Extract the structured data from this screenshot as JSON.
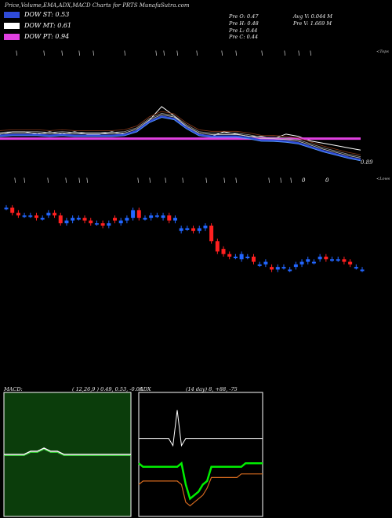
{
  "title": "Price,Volume,EMA,ADX,MACD Charts for PRTS MunafaSutra.com",
  "legend": [
    {
      "label": "DOW ST: 0.53",
      "color": "#2f4bd8"
    },
    {
      "label": "DOW MT: 0.61",
      "color": "#ffffff"
    },
    {
      "label": "DOW PT: 0.94",
      "color": "#e040e0"
    }
  ],
  "stats": {
    "pre_o": "Pre   O: 0.47",
    "pre_h": "Pre   H: 0.48",
    "pre_l": "Pre   L: 0.44",
    "pre_c": "Pre   C: 0.44",
    "avg_v": "Avg V: 0.044   M",
    "pre_v": "Pre   V: 1.669 M"
  },
  "labels": {
    "top_right": "<Tops",
    "bottom_right": "<Lows",
    "last_price": "0.89"
  },
  "macd": {
    "name": "MACD:",
    "params": "( 12,26,9 ) 0.49,  0.53,  -0.06"
  },
  "adx": {
    "name": "ADX",
    "params": "(14  day) 8,  +88,  -75"
  },
  "colors": {
    "bull": "#2266ff",
    "bear": "#ff2020",
    "ema_fast": "#2f4bd8",
    "ema_mid": "#ffffff",
    "ema_slow": "#e040e0",
    "macd_bg": "#0b3d0b"
  },
  "chart_data": [
    {
      "type": "line",
      "title": "",
      "xlabel": "",
      "ylabel": "",
      "x": [
        1,
        2,
        3,
        4,
        5,
        6,
        7,
        8,
        9,
        10,
        11,
        12,
        13,
        14,
        15,
        16,
        17,
        18,
        19,
        20,
        21,
        22,
        23,
        24,
        25,
        26,
        27,
        28,
        29,
        30
      ],
      "series": [
        {
          "values": [
            0.96,
            0.97,
            0.97,
            0.96,
            0.97,
            0.96,
            0.97,
            0.96,
            0.96,
            0.97,
            0.96,
            0.97,
            1.02,
            1.08,
            1.04,
            0.99,
            0.96,
            0.95,
            0.97,
            0.96,
            0.95,
            0.95,
            0.94,
            0.96,
            0.95,
            0.93,
            0.92,
            0.91,
            0.9,
            0.89
          ]
        },
        {
          "values": [
            0.94,
            0.94,
            0.94,
            0.94,
            0.94,
            0.94,
            0.94,
            0.94,
            0.94,
            0.94,
            0.94,
            0.94,
            0.94,
            0.94,
            0.94,
            0.94,
            0.94,
            0.94,
            0.94,
            0.94,
            0.94,
            0.94,
            0.94,
            0.94,
            0.94,
            0.94,
            0.94,
            0.94,
            0.94,
            0.94
          ]
        }
      ]
    },
    {
      "type": "bar",
      "title": "",
      "categories": [
        "1",
        "2",
        "3",
        "4",
        "5",
        "6",
        "7",
        "8",
        "9",
        "10",
        "11",
        "12",
        "13",
        "14",
        "15",
        "16",
        "17",
        "18",
        "19",
        "20",
        "21",
        "22",
        "23",
        "24",
        "25",
        "26",
        "27",
        "28",
        "29",
        "30",
        "31",
        "32",
        "33",
        "34",
        "35",
        "36",
        "37",
        "38",
        "39",
        "40",
        "41",
        "42",
        "43",
        "44",
        "45",
        "46",
        "47",
        "48",
        "49",
        "50",
        "51",
        "52",
        "53",
        "54",
        "55",
        "56",
        "57",
        "58",
        "59",
        "60"
      ],
      "series": [
        {
          "name": "open",
          "values": [
            0.66,
            0.66,
            0.64,
            0.63,
            0.63,
            0.63,
            0.62,
            0.63,
            0.64,
            0.63,
            0.6,
            0.61,
            0.62,
            0.62,
            0.61,
            0.6,
            0.6,
            0.59,
            0.62,
            0.6,
            0.61,
            0.62,
            0.65,
            0.62,
            0.62,
            0.63,
            0.62,
            0.63,
            0.61,
            0.57,
            0.58,
            0.58,
            0.57,
            0.58,
            0.59,
            0.53,
            0.5,
            0.48,
            0.47,
            0.46,
            0.47,
            0.47,
            0.44,
            0.44,
            0.43,
            0.42,
            0.43,
            0.42,
            0.43,
            0.44,
            0.45,
            0.45,
            0.46,
            0.47,
            0.46,
            0.46,
            0.46,
            0.45,
            0.43,
            0.42
          ]
        },
        {
          "name": "close",
          "values": [
            0.66,
            0.64,
            0.63,
            0.63,
            0.63,
            0.62,
            0.62,
            0.64,
            0.63,
            0.6,
            0.61,
            0.62,
            0.62,
            0.61,
            0.6,
            0.6,
            0.59,
            0.6,
            0.61,
            0.61,
            0.62,
            0.65,
            0.62,
            0.62,
            0.63,
            0.63,
            0.63,
            0.61,
            0.62,
            0.58,
            0.58,
            0.57,
            0.58,
            0.59,
            0.53,
            0.49,
            0.48,
            0.47,
            0.47,
            0.48,
            0.47,
            0.45,
            0.44,
            0.45,
            0.42,
            0.43,
            0.43,
            0.42,
            0.44,
            0.45,
            0.46,
            0.45,
            0.47,
            0.46,
            0.46,
            0.46,
            0.45,
            0.44,
            0.43,
            0.42
          ]
        }
      ]
    },
    {
      "type": "line",
      "title": "MACD",
      "series": [
        {
          "values": [
            0.53,
            0.53,
            0.53,
            0.53,
            0.54,
            0.54,
            0.55,
            0.54,
            0.54,
            0.53,
            0.53,
            0.53,
            0.53,
            0.53,
            0.53,
            0.53,
            0.53,
            0.53,
            0.53,
            0.53
          ]
        }
      ]
    },
    {
      "type": "line",
      "title": "ADX",
      "series": [
        {
          "values": [
            44,
            44,
            44,
            44,
            44,
            44,
            44,
            44,
            40,
            60,
            40,
            44,
            44,
            44,
            44,
            44,
            44,
            44,
            44,
            44,
            44,
            44,
            44,
            44,
            44,
            44,
            44,
            44,
            44,
            44
          ]
        },
        {
          "values": [
            30,
            28,
            28,
            28,
            28,
            28,
            28,
            28,
            28,
            28,
            30,
            18,
            10,
            12,
            14,
            18,
            20,
            28,
            28,
            28,
            28,
            28,
            28,
            28,
            28,
            30,
            30,
            30,
            30,
            30
          ]
        },
        {
          "values": [
            18,
            20,
            20,
            20,
            20,
            20,
            20,
            20,
            20,
            20,
            18,
            8,
            6,
            8,
            10,
            12,
            16,
            22,
            22,
            22,
            22,
            22,
            22,
            22,
            24,
            24,
            24,
            24,
            24,
            24
          ]
        }
      ]
    }
  ]
}
